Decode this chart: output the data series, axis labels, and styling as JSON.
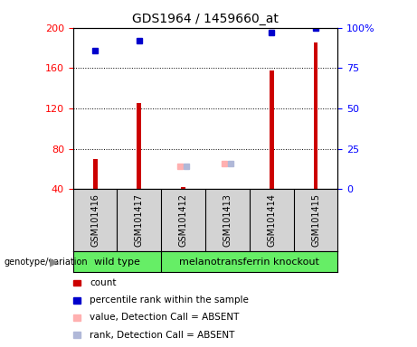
{
  "title": "GDS1964 / 1459660_at",
  "samples": [
    "GSM101416",
    "GSM101417",
    "GSM101412",
    "GSM101413",
    "GSM101414",
    "GSM101415"
  ],
  "count_values": [
    70,
    125,
    42,
    40,
    158,
    185
  ],
  "percentile_values": [
    86,
    92,
    null,
    null,
    97,
    100
  ],
  "absent_value_values": [
    null,
    null,
    63,
    65,
    null,
    null
  ],
  "absent_rank_values": [
    null,
    null,
    63,
    65,
    null,
    null
  ],
  "ylim_left": [
    40,
    200
  ],
  "ylim_right": [
    0,
    100
  ],
  "yticks_left": [
    40,
    80,
    120,
    160,
    200
  ],
  "yticks_right": [
    0,
    25,
    50,
    75,
    100
  ],
  "ytick_right_labels": [
    "0",
    "25",
    "50",
    "75",
    "100%"
  ],
  "bar_color": "#CC0000",
  "percentile_color": "#0000CC",
  "absent_value_color": "#FFB0B0",
  "absent_rank_color": "#B0B8D8",
  "bg_color": "#FFFFFF",
  "label_area_color": "#D3D3D3",
  "group_area_color": "#66EE66",
  "wild_type_label": "wild type",
  "knockout_label": "melanotransferrin knockout",
  "genotype_label": "genotype/variation",
  "legend_entries": [
    {
      "color": "#CC0000",
      "label": "count"
    },
    {
      "color": "#0000CC",
      "label": "percentile rank within the sample"
    },
    {
      "color": "#FFB0B0",
      "label": "value, Detection Call = ABSENT"
    },
    {
      "color": "#B0B8D8",
      "label": "rank, Detection Call = ABSENT"
    }
  ]
}
